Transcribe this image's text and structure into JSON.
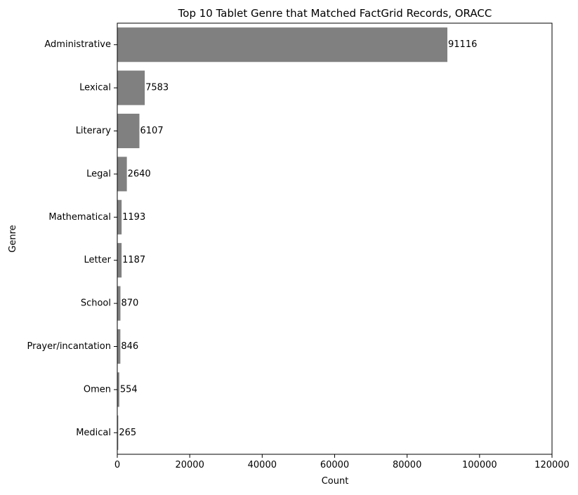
{
  "chart_data": {
    "type": "bar",
    "orientation": "horizontal",
    "title": "Top 10 Tablet Genre that Matched FactGrid Records, ORACC",
    "xlabel": "Count",
    "ylabel": "Genre",
    "xlim": [
      0,
      120000
    ],
    "xticks": [
      0,
      20000,
      40000,
      60000,
      80000,
      100000,
      120000
    ],
    "grid": false,
    "legend": "none",
    "bar_color": "#808080",
    "categories": [
      "Administrative",
      "Lexical",
      "Literary",
      "Legal",
      "Mathematical",
      "Letter",
      "School",
      "Prayer/incantation",
      "Omen",
      "Medical"
    ],
    "values": [
      91116,
      7583,
      6107,
      2640,
      1193,
      1187,
      870,
      846,
      554,
      265
    ],
    "data_labels": [
      "91116",
      "7583",
      "6107",
      "2640",
      "1193",
      "1187",
      "870",
      "846",
      "554",
      "265"
    ]
  }
}
